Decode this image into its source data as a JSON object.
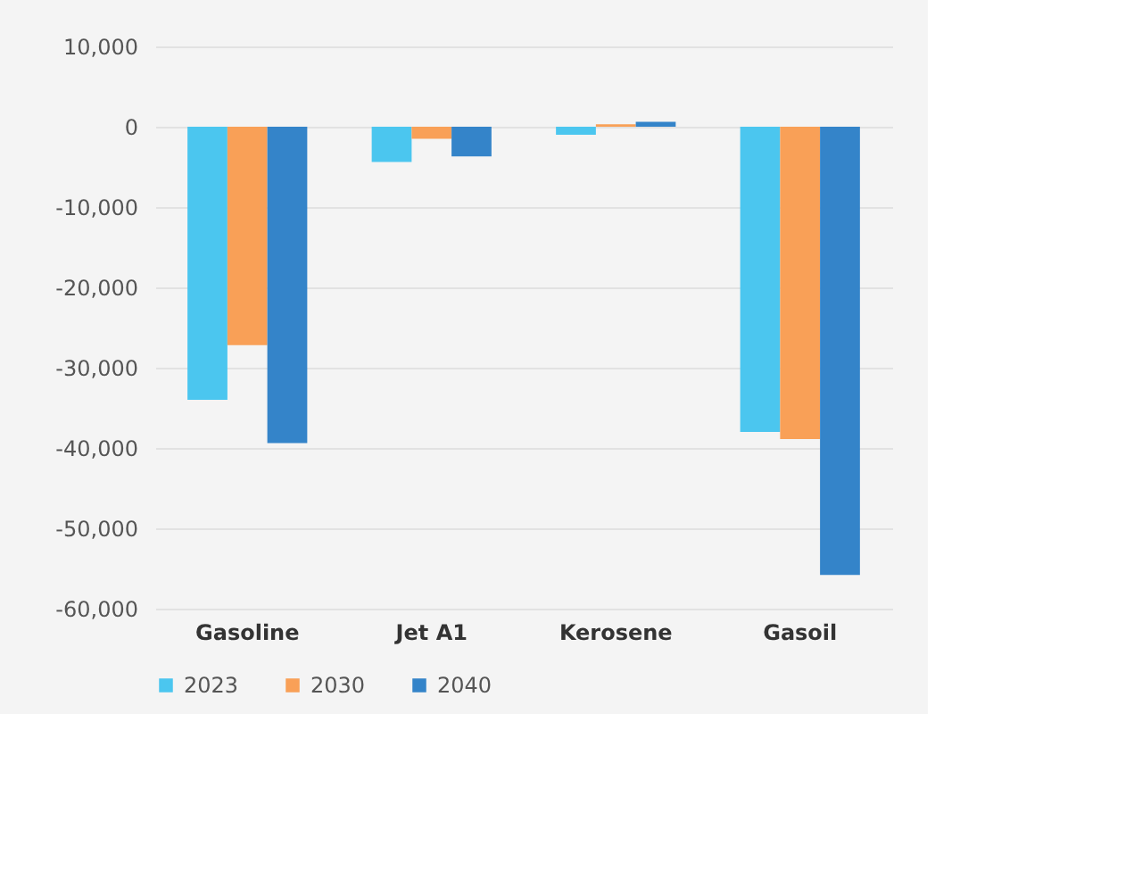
{
  "chart_data": {
    "type": "bar",
    "categories": [
      "Gasoline",
      "Jet A1",
      "Kerosene",
      "Gasoil"
    ],
    "series": [
      {
        "name": "2023",
        "color": "#4bc6ef",
        "values": [
          -34000,
          -4400,
          -1000,
          -38000
        ]
      },
      {
        "name": "2030",
        "color": "#f9a057",
        "values": [
          -27200,
          -1500,
          300,
          -38900
        ]
      },
      {
        "name": "2040",
        "color": "#3484c9",
        "values": [
          -39400,
          -3700,
          600,
          -55800
        ]
      }
    ],
    "ylim": [
      -60000,
      10000
    ],
    "yticks": [
      {
        "value": -60000,
        "label": "-60,000"
      },
      {
        "value": -50000,
        "label": "-50,000"
      },
      {
        "value": -40000,
        "label": "-40,000"
      },
      {
        "value": -30000,
        "label": "-30,000"
      },
      {
        "value": -20000,
        "label": "-20,000"
      },
      {
        "value": -10000,
        "label": "-10,000"
      },
      0,
      {
        "value": 10000,
        "label": "10,000"
      }
    ],
    "grid": "y",
    "legend": "bottom"
  }
}
